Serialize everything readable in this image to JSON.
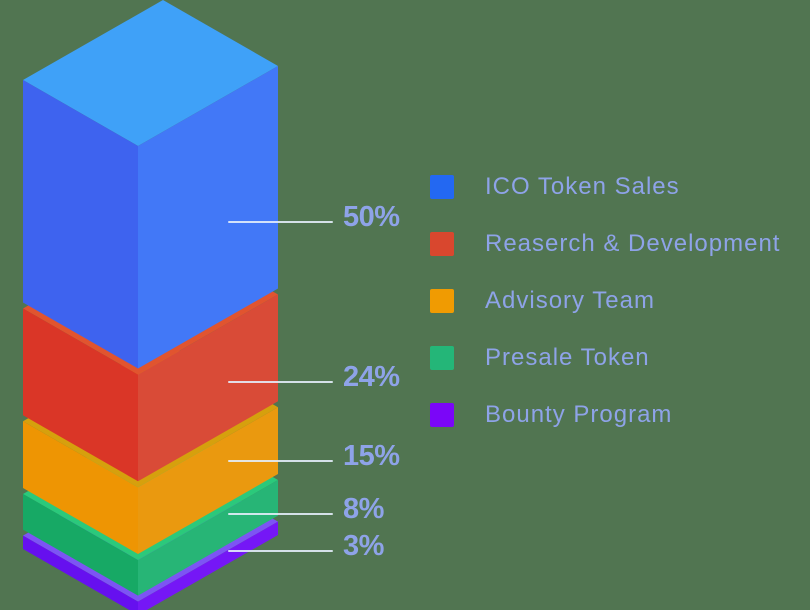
{
  "background_color": "#517551",
  "label_text_color": "#8EA3E8",
  "callout_line_color": "#E3EDFA",
  "chart_data": {
    "type": "bar",
    "variant": "isometric-3d-stacked-column",
    "title": "",
    "unit": "%",
    "grid": false,
    "legend_position": "right",
    "categories": [
      "ICO Token Sales",
      "Reaserch & Development",
      "Advisory Team",
      "Presale Token",
      "Bounty Program"
    ],
    "values": [
      50,
      24,
      15,
      8,
      3
    ],
    "segments": [
      {
        "label": "ICO Token Sales",
        "value": 50,
        "display": "50%",
        "swatch": "#2368F2",
        "face_left": "#3E63EF",
        "face_right": "#4278F7",
        "face_top": "#3FA1F8"
      },
      {
        "label": "Reaserch & Development",
        "value": 24,
        "display": "24%",
        "swatch": "#D9472E",
        "face_left": "#DA3627",
        "face_right": "#D94B37",
        "face_top": "#E1542F"
      },
      {
        "label": "Advisory Team",
        "value": 15,
        "display": "15%",
        "swatch": "#F09B02",
        "face_left": "#EE9503",
        "face_right": "#EA990F",
        "face_top": "#D6A00D"
      },
      {
        "label": "Presale Token",
        "value": 8,
        "display": "8%",
        "swatch": "#24B678",
        "face_left": "#17A965",
        "face_right": "#27B576",
        "face_top": "#2BC97B"
      },
      {
        "label": "Bounty Program",
        "value": 3,
        "display": "3%",
        "swatch": "#7B06F8",
        "face_left": "#6610EF",
        "face_right": "#7517F6",
        "face_top": "#7D54F4"
      }
    ]
  }
}
